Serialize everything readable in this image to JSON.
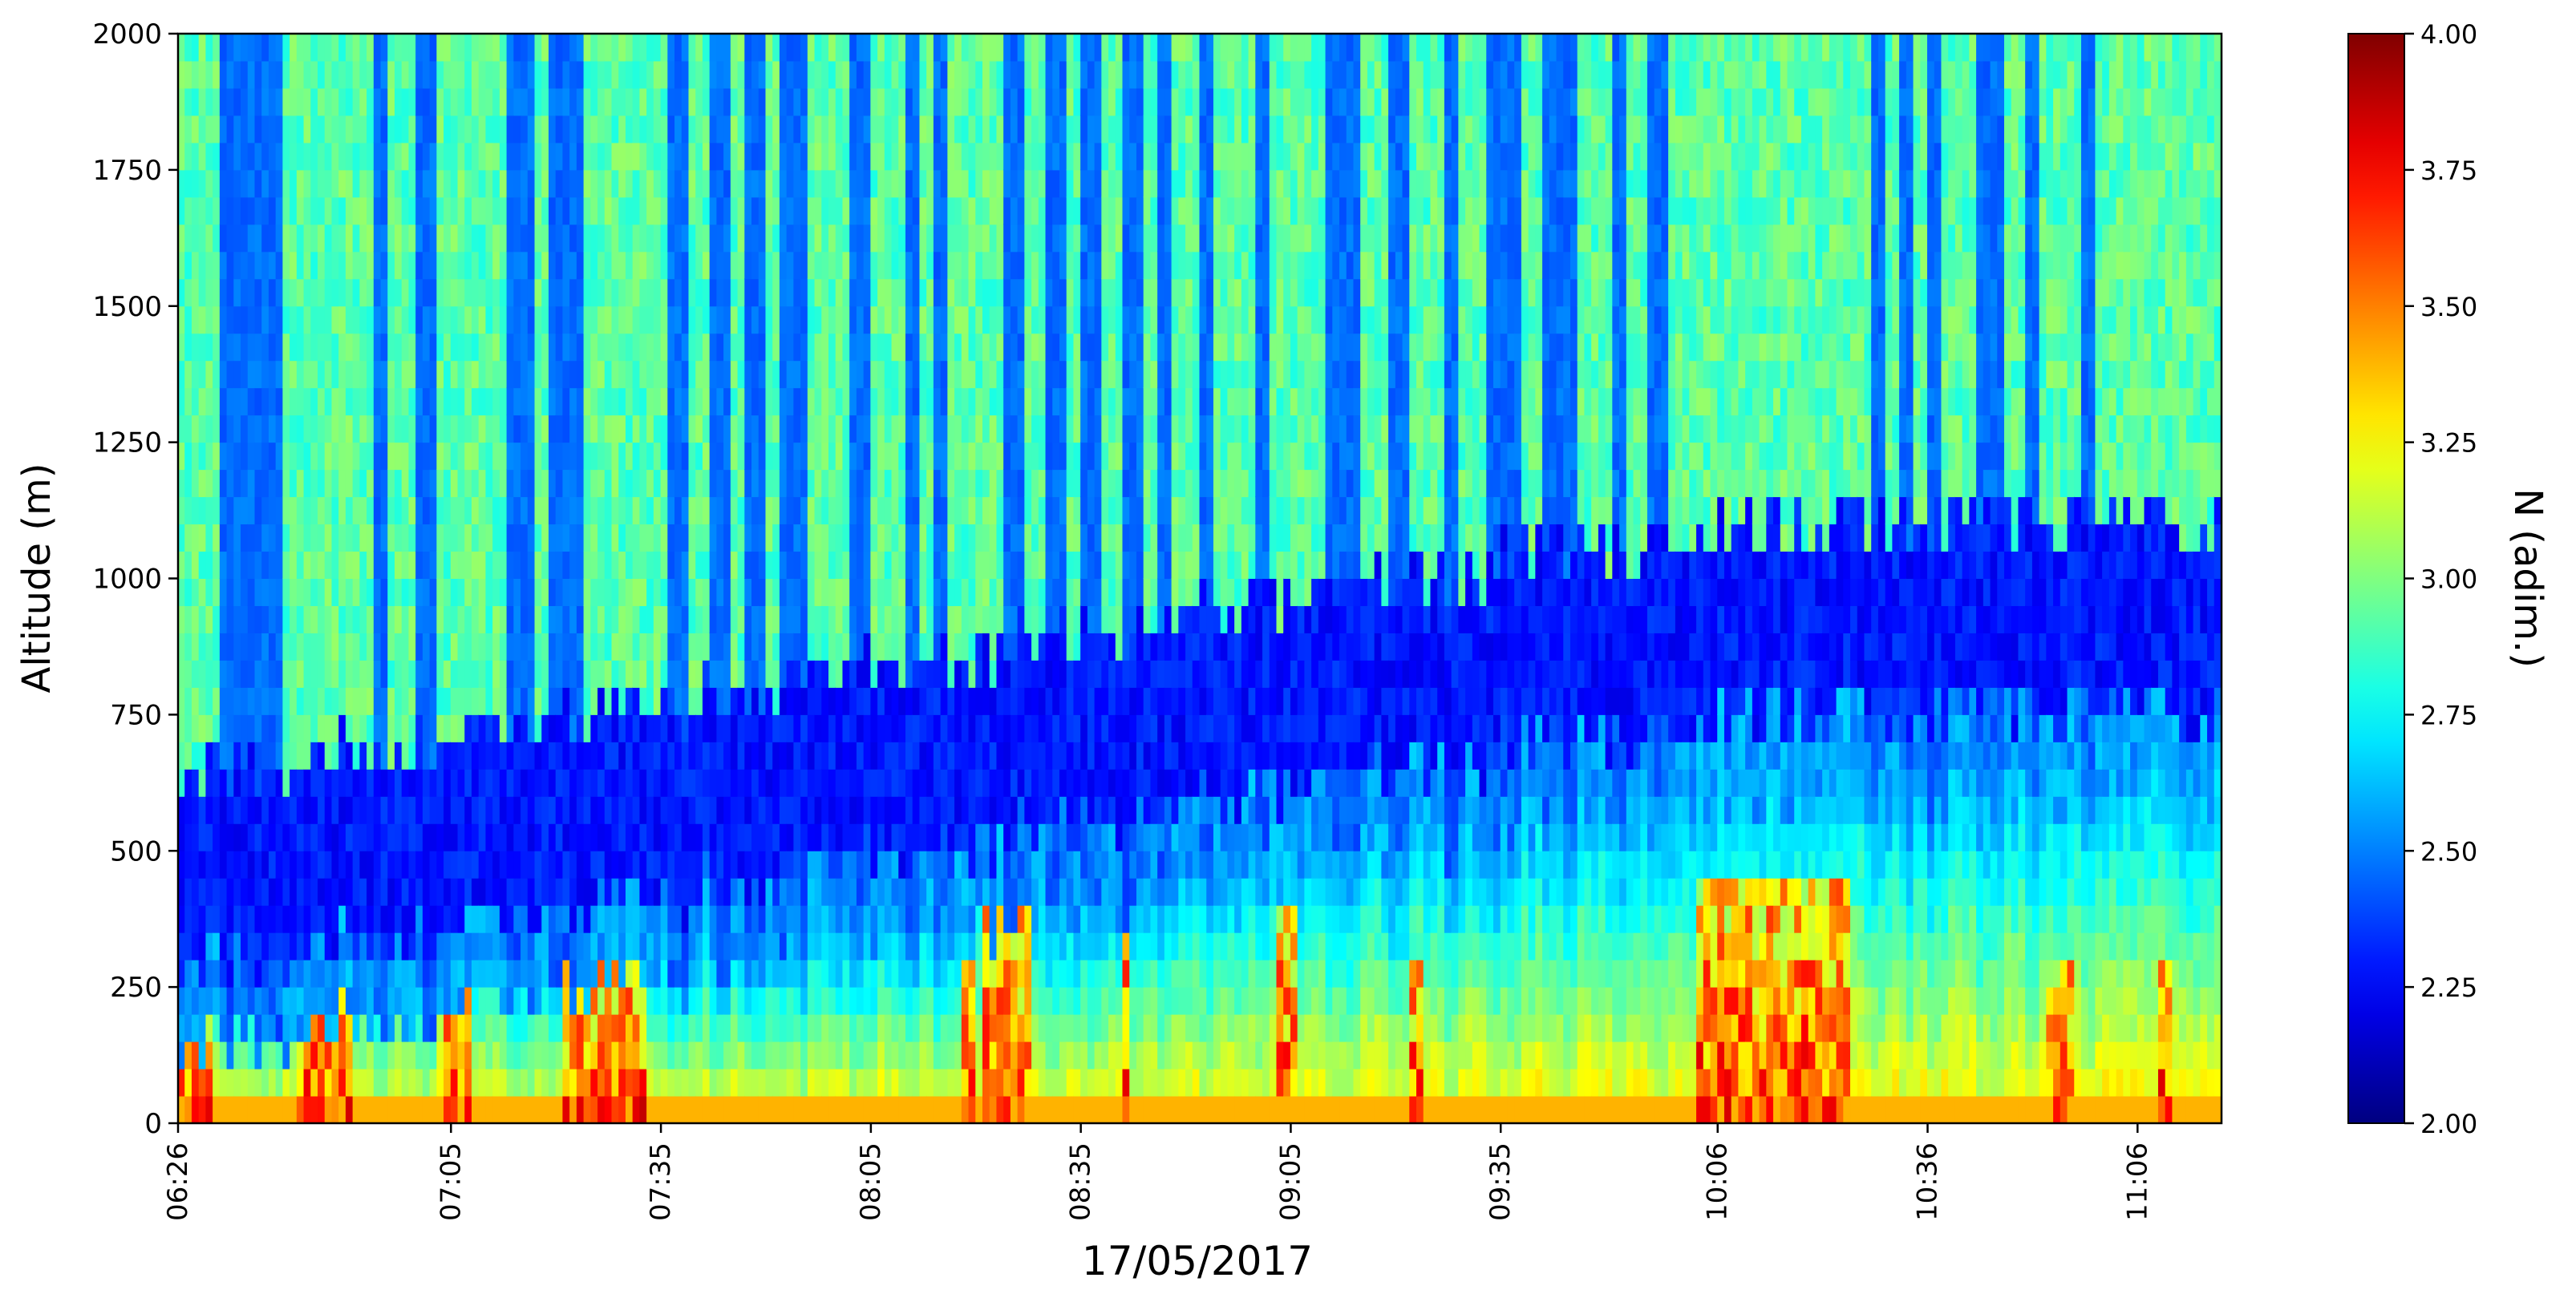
{
  "chart_data": {
    "type": "heatmap",
    "title": "",
    "xlabel": "17/05/2017",
    "ylabel": "Altitude (m)",
    "colorbar_label": "N (adim.)",
    "colormap": "jet",
    "x_tick_labels": [
      "06:26",
      "07:05",
      "07:35",
      "08:05",
      "08:35",
      "09:05",
      "09:35",
      "10:06",
      "10:36",
      "11:06"
    ],
    "x_tick_minutes": [
      386,
      425,
      455,
      485,
      515,
      545,
      575,
      606,
      636,
      666
    ],
    "x_range_minutes": [
      386,
      678
    ],
    "y_ticks": [
      0,
      250,
      500,
      750,
      1000,
      1250,
      1500,
      1750,
      2000
    ],
    "ylim": [
      0,
      2000
    ],
    "colorbar_ticks": [
      "2.00",
      "2.25",
      "2.50",
      "2.75",
      "3.00",
      "3.25",
      "3.50",
      "3.75",
      "4.00"
    ],
    "clim": [
      2.0,
      4.0
    ],
    "profiles": {
      "columns": 292,
      "clear_air_upper": 2.95,
      "cloud_upper": 2.45,
      "boundary_layer_top_m": [
        420,
        900
      ],
      "surface_max": 3.9
    },
    "cloudy_periods": [
      {
        "start": "06:32",
        "end": "06:41"
      },
      {
        "start": "06:54",
        "end": "06:56"
      },
      {
        "start": "07:00",
        "end": "07:03"
      },
      {
        "start": "07:13",
        "end": "07:17"
      },
      {
        "start": "07:19",
        "end": "07:24"
      },
      {
        "start": "07:36",
        "end": "07:39"
      },
      {
        "start": "07:42",
        "end": "07:45"
      },
      {
        "start": "07:47",
        "end": "07:50"
      },
      {
        "start": "07:52",
        "end": "07:56"
      },
      {
        "start": "08:02",
        "end": "08:05"
      },
      {
        "start": "08:10",
        "end": "08:12"
      },
      {
        "start": "08:14",
        "end": "08:16"
      },
      {
        "start": "08:24",
        "end": "08:27"
      },
      {
        "start": "08:30",
        "end": "08:33"
      },
      {
        "start": "08:35",
        "end": "08:38"
      },
      {
        "start": "08:41",
        "end": "08:44"
      },
      {
        "start": "08:46",
        "end": "08:48"
      },
      {
        "start": "08:52",
        "end": "08:54"
      },
      {
        "start": "09:00",
        "end": "09:02"
      },
      {
        "start": "09:10",
        "end": "09:15"
      },
      {
        "start": "09:19",
        "end": "09:22"
      },
      {
        "start": "09:27",
        "end": "09:29"
      },
      {
        "start": "09:33",
        "end": "09:38"
      },
      {
        "start": "09:41",
        "end": "09:46"
      },
      {
        "start": "09:51",
        "end": "09:53"
      },
      {
        "start": "09:56",
        "end": "09:59"
      },
      {
        "start": "10:28",
        "end": "10:30"
      },
      {
        "start": "10:32",
        "end": "10:34"
      },
      {
        "start": "10:36",
        "end": "10:38"
      },
      {
        "start": "10:43",
        "end": "10:47"
      },
      {
        "start": "10:50",
        "end": "10:52"
      },
      {
        "start": "10:58",
        "end": "11:00"
      }
    ],
    "surface_hot_spots": [
      {
        "start": "06:26",
        "end": "06:31",
        "peak_height_m": 240
      },
      {
        "start": "06:43",
        "end": "06:51",
        "peak_height_m": 260
      },
      {
        "start": "07:03",
        "end": "07:08",
        "peak_height_m": 250
      },
      {
        "start": "07:21",
        "end": "07:33",
        "peak_height_m": 280
      },
      {
        "start": "08:18",
        "end": "08:20",
        "peak_height_m": 320
      },
      {
        "start": "08:21",
        "end": "08:28",
        "peak_height_m": 380
      },
      {
        "start": "08:41",
        "end": "08:42",
        "peak_height_m": 480
      },
      {
        "start": "09:03",
        "end": "09:06",
        "peak_height_m": 380
      },
      {
        "start": "09:22",
        "end": "09:24",
        "peak_height_m": 300
      },
      {
        "start": "10:03",
        "end": "10:25",
        "peak_height_m": 460
      },
      {
        "start": "10:53",
        "end": "10:57",
        "peak_height_m": 300
      },
      {
        "start": "11:09",
        "end": "11:11",
        "peak_height_m": 280
      }
    ]
  }
}
